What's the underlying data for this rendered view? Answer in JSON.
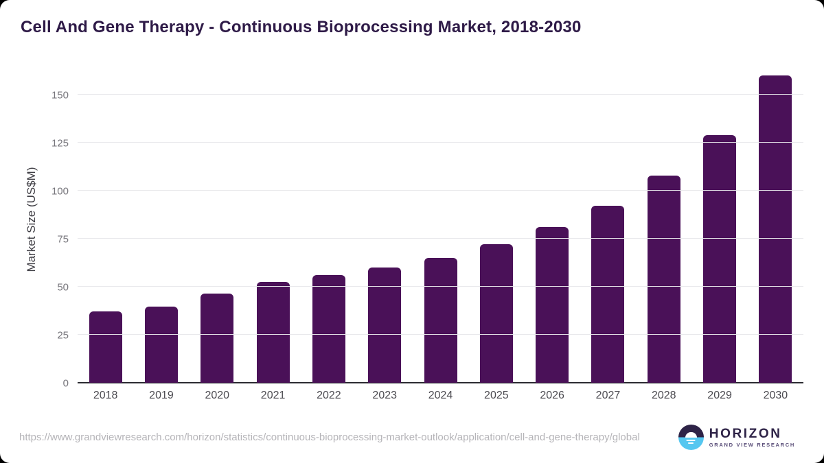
{
  "title": "Cell And Gene Therapy - Continuous Bioprocessing Market, 2018-2030",
  "chart_data": {
    "type": "bar",
    "title": "Cell And Gene Therapy - Continuous Bioprocessing Market, 2018-2030",
    "categories": [
      "2018",
      "2019",
      "2020",
      "2021",
      "2022",
      "2023",
      "2024",
      "2025",
      "2026",
      "2027",
      "2028",
      "2029",
      "2030"
    ],
    "values": [
      37,
      39.5,
      46.5,
      52.5,
      56,
      60,
      65,
      72,
      81,
      92,
      108,
      129,
      160
    ],
    "xlabel": "",
    "ylabel": "Market Size (US$M)",
    "ylim": [
      0,
      160
    ],
    "yticks": [
      0,
      25,
      50,
      75,
      100,
      125,
      150
    ],
    "grid": "horizontal",
    "legend": "none",
    "bar_color": "#4a1158"
  },
  "footer": {
    "url": "https://www.grandviewresearch.com/horizon/statistics/continuous-bioprocessing-market-outlook/application/cell-and-gene-therapy/global",
    "logo_title": "HORIZON",
    "logo_subtitle": "GRAND VIEW RESEARCH"
  }
}
